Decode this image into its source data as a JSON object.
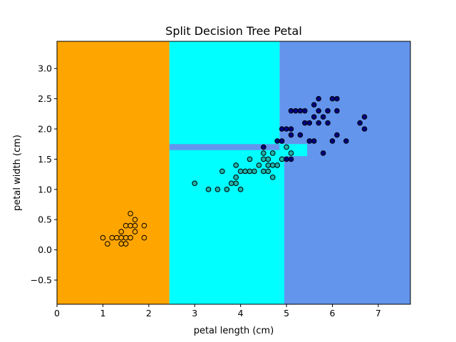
{
  "chart_data": {
    "type": "scatter",
    "title": "Split Decision Tree Petal",
    "xlabel": "petal length (cm)",
    "ylabel": "petal width (cm)",
    "xlim": [
      0,
      7.7
    ],
    "ylim": [
      -0.9,
      3.45
    ],
    "xticks": [
      "0",
      "1",
      "2",
      "3",
      "4",
      "5",
      "6",
      "7"
    ],
    "yticks": [
      "−0.5",
      "0.0",
      "0.5",
      "1.0",
      "1.5",
      "2.0",
      "2.5",
      "3.0"
    ],
    "grid": false,
    "regions": [
      {
        "class": "setosa",
        "color": "#ffa500",
        "x": [
          0,
          2.45
        ],
        "y": [
          -0.9,
          3.45
        ]
      },
      {
        "class": "versicolor",
        "color": "#00ffff",
        "x": [
          2.45,
          4.85
        ],
        "y": [
          -0.9,
          3.45
        ]
      },
      {
        "class": "virginica",
        "color": "#6495ed",
        "x": [
          4.85,
          7.7
        ],
        "y": [
          -0.9,
          3.45
        ]
      },
      {
        "class": "virginica",
        "color": "#6495ed",
        "x": [
          2.45,
          4.85
        ],
        "y": [
          1.65,
          1.75
        ]
      },
      {
        "class": "versicolor",
        "color": "#00ffff",
        "x": [
          4.85,
          5.45
        ],
        "y": [
          1.55,
          1.75
        ]
      },
      {
        "class": "versicolor",
        "color": "#00ffff",
        "x": [
          4.85,
          4.95
        ],
        "y": [
          -0.9,
          1.55
        ]
      }
    ],
    "series": [
      {
        "class": "setosa",
        "color": "#ffa500",
        "points": [
          [
            1.0,
            0.2
          ],
          [
            1.1,
            0.1
          ],
          [
            1.2,
            0.2
          ],
          [
            1.3,
            0.2
          ],
          [
            1.4,
            0.2
          ],
          [
            1.4,
            0.3
          ],
          [
            1.4,
            0.1
          ],
          [
            1.5,
            0.2
          ],
          [
            1.5,
            0.4
          ],
          [
            1.5,
            0.1
          ],
          [
            1.6,
            0.2
          ],
          [
            1.6,
            0.4
          ],
          [
            1.6,
            0.6
          ],
          [
            1.7,
            0.4
          ],
          [
            1.7,
            0.5
          ],
          [
            1.7,
            0.3
          ],
          [
            1.9,
            0.2
          ],
          [
            1.9,
            0.4
          ]
        ]
      },
      {
        "class": "versicolor",
        "color": "#20b2aa",
        "points": [
          [
            3.0,
            1.1
          ],
          [
            3.3,
            1.0
          ],
          [
            3.5,
            1.0
          ],
          [
            3.6,
            1.3
          ],
          [
            3.7,
            1.0
          ],
          [
            3.8,
            1.1
          ],
          [
            3.9,
            1.1
          ],
          [
            3.9,
            1.2
          ],
          [
            3.9,
            1.4
          ],
          [
            4.0,
            1.0
          ],
          [
            4.0,
            1.3
          ],
          [
            4.1,
            1.3
          ],
          [
            4.2,
            1.3
          ],
          [
            4.2,
            1.5
          ],
          [
            4.3,
            1.3
          ],
          [
            4.4,
            1.4
          ],
          [
            4.5,
            1.3
          ],
          [
            4.5,
            1.5
          ],
          [
            4.5,
            1.6
          ],
          [
            4.6,
            1.3
          ],
          [
            4.6,
            1.4
          ],
          [
            4.6,
            1.5
          ],
          [
            4.7,
            1.2
          ],
          [
            4.7,
            1.4
          ],
          [
            4.7,
            1.6
          ],
          [
            4.8,
            1.4
          ],
          [
            4.9,
            1.5
          ],
          [
            5.0,
            1.7
          ],
          [
            5.1,
            1.6
          ]
        ]
      },
      {
        "class": "virginica",
        "color": "#000080",
        "points": [
          [
            4.5,
            1.7
          ],
          [
            4.8,
            1.8
          ],
          [
            4.9,
            1.8
          ],
          [
            4.9,
            2.0
          ],
          [
            5.0,
            1.5
          ],
          [
            5.0,
            2.0
          ],
          [
            5.1,
            1.5
          ],
          [
            5.1,
            1.9
          ],
          [
            5.1,
            2.0
          ],
          [
            5.1,
            2.3
          ],
          [
            5.2,
            2.3
          ],
          [
            5.3,
            2.3
          ],
          [
            5.3,
            1.9
          ],
          [
            5.4,
            2.3
          ],
          [
            5.4,
            2.1
          ],
          [
            5.5,
            2.1
          ],
          [
            5.5,
            1.8
          ],
          [
            5.6,
            1.8
          ],
          [
            5.6,
            2.2
          ],
          [
            5.6,
            2.4
          ],
          [
            5.7,
            2.1
          ],
          [
            5.7,
            2.5
          ],
          [
            5.7,
            2.3
          ],
          [
            5.8,
            1.6
          ],
          [
            5.8,
            2.2
          ],
          [
            5.9,
            2.1
          ],
          [
            5.9,
            2.3
          ],
          [
            6.0,
            1.8
          ],
          [
            6.0,
            2.5
          ],
          [
            6.1,
            2.3
          ],
          [
            6.1,
            1.9
          ],
          [
            6.1,
            2.5
          ],
          [
            6.3,
            1.8
          ],
          [
            6.6,
            2.1
          ],
          [
            6.7,
            2.2
          ],
          [
            6.7,
            2.0
          ]
        ]
      }
    ]
  }
}
